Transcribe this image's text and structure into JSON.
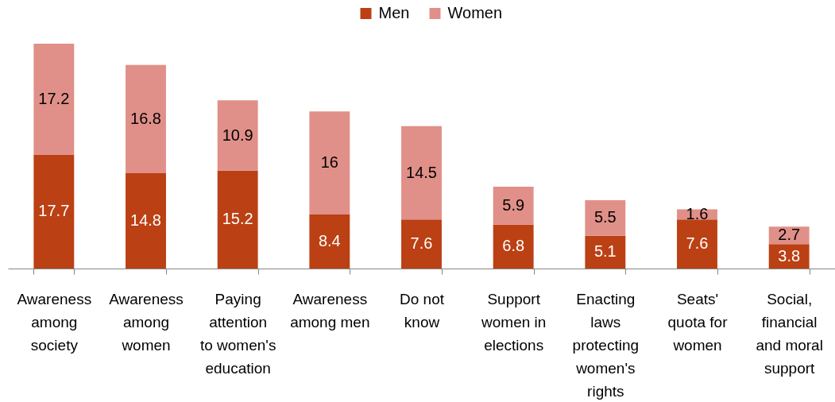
{
  "chart_data": {
    "type": "bar",
    "categories": [
      "Awareness among society",
      "Awareness among women",
      "Paying attention to women's education",
      "Awareness among men",
      "Do not know",
      "Support women in elections",
      "Enacting laws protecting women's rights",
      "Seats' quota for women",
      "Social, financial and moral support"
    ],
    "series": [
      {
        "name": "Men",
        "color": "#bb4014",
        "values": [
          17.7,
          14.8,
          15.2,
          8.4,
          7.6,
          6.8,
          5.1,
          7.6,
          3.8
        ]
      },
      {
        "name": "Women",
        "color": "#e09088",
        "values": [
          17.2,
          16.8,
          10.9,
          16,
          14.5,
          5.9,
          5.5,
          1.6,
          2.7
        ]
      }
    ],
    "stacked": true,
    "data_labels": true,
    "legend": "top"
  }
}
